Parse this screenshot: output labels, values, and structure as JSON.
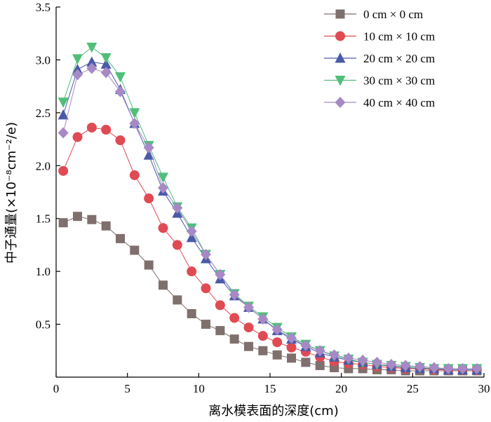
{
  "chart_data": {
    "type": "line",
    "title": "",
    "xlabel": "离水模表面的深度(cm)",
    "ylabel": "中子通量(×10⁻⁸cm⁻²/e)",
    "xlim": [
      0,
      30
    ],
    "ylim": [
      0,
      3.5
    ],
    "xticks": [
      "0",
      "5",
      "10",
      "15",
      "20",
      "25",
      "30"
    ],
    "yticks": [
      "0.5",
      "1.0",
      "1.5",
      "2.0",
      "2.5",
      "3.0",
      "3.5"
    ],
    "grid": false,
    "legend_position": "top-right",
    "x": [
      0.5,
      1.5,
      2.5,
      3.5,
      4.5,
      5.5,
      6.5,
      7.5,
      8.5,
      9.5,
      10.5,
      11.5,
      12.5,
      13.5,
      14.5,
      15.5,
      16.5,
      17.5,
      18.5,
      19.5,
      20.5,
      21.5,
      22.5,
      23.5,
      24.5,
      25.5,
      26.5,
      27.5,
      28.5,
      29.5
    ],
    "series": [
      {
        "name": "0 cm × 0 cm",
        "color": "#7f6f6d",
        "marker": "square",
        "values": [
          1.46,
          1.52,
          1.49,
          1.43,
          1.31,
          1.2,
          1.06,
          0.87,
          0.73,
          0.6,
          0.5,
          0.44,
          0.36,
          0.29,
          0.25,
          0.21,
          0.18,
          0.14,
          0.11,
          0.09,
          0.08,
          0.08,
          0.07,
          0.07,
          0.06,
          0.06,
          0.06,
          0.06,
          0.06,
          0.06
        ]
      },
      {
        "name": "10 cm × 10 cm",
        "color": "#e04a53",
        "marker": "circle",
        "values": [
          1.95,
          2.27,
          2.36,
          2.34,
          2.24,
          1.91,
          1.69,
          1.41,
          1.25,
          1.0,
          0.84,
          0.68,
          0.56,
          0.47,
          0.39,
          0.33,
          0.28,
          0.24,
          0.19,
          0.15,
          0.13,
          0.12,
          0.1,
          0.09,
          0.08,
          0.08,
          0.07,
          0.07,
          0.07,
          0.07
        ]
      },
      {
        "name": "20 cm × 20 cm",
        "color": "#4a5aa8",
        "marker": "triangle-up",
        "values": [
          2.48,
          2.91,
          2.98,
          2.96,
          2.72,
          2.4,
          2.1,
          1.76,
          1.55,
          1.32,
          1.12,
          0.93,
          0.77,
          0.66,
          0.55,
          0.44,
          0.36,
          0.29,
          0.23,
          0.19,
          0.16,
          0.14,
          0.12,
          0.1,
          0.09,
          0.08,
          0.08,
          0.07,
          0.07,
          0.07
        ]
      },
      {
        "name": "30 cm × 30 cm",
        "color": "#4fbf7a",
        "marker": "triangle-down",
        "values": [
          2.6,
          3.01,
          3.12,
          3.02,
          2.84,
          2.5,
          2.19,
          1.89,
          1.61,
          1.41,
          1.16,
          0.97,
          0.79,
          0.67,
          0.57,
          0.47,
          0.38,
          0.31,
          0.25,
          0.2,
          0.17,
          0.14,
          0.12,
          0.11,
          0.1,
          0.09,
          0.08,
          0.08,
          0.08,
          0.08
        ]
      },
      {
        "name": "40 cm × 40 cm",
        "color": "#a789c6",
        "marker": "diamond",
        "values": [
          2.31,
          2.86,
          2.92,
          2.88,
          2.7,
          2.4,
          2.17,
          1.79,
          1.6,
          1.38,
          1.16,
          0.97,
          0.78,
          0.66,
          0.55,
          0.45,
          0.37,
          0.3,
          0.25,
          0.21,
          0.18,
          0.16,
          0.14,
          0.12,
          0.11,
          0.1,
          0.09,
          0.08,
          0.08,
          0.08
        ]
      }
    ]
  }
}
